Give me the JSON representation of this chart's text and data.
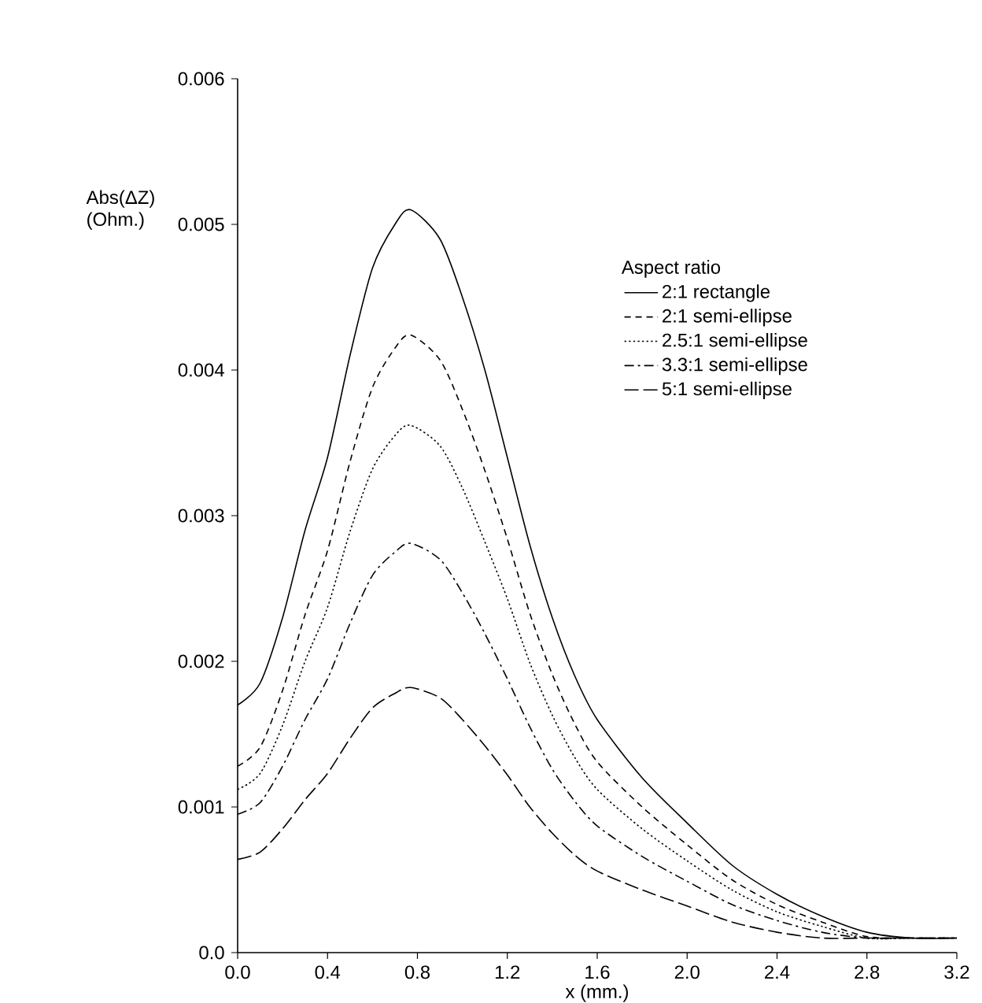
{
  "chart_data": {
    "type": "line",
    "xlabel": "x (mm.)",
    "ylabel": "Abs(ΔZ) (Ohm.)",
    "legend_title": "Aspect ratio",
    "legend": "top right",
    "grid": false,
    "marker": "none",
    "x": [
      0,
      0.1,
      0.2,
      0.3,
      0.4,
      0.5,
      0.6,
      0.7,
      0.77,
      0.9,
      1.0,
      1.1,
      1.2,
      1.3,
      1.4,
      1.5,
      1.6,
      1.8,
      2.0,
      2.2,
      2.4,
      2.6,
      2.8,
      3.0,
      3.2
    ],
    "xlim": [
      0,
      3.2
    ],
    "ylim": [
      0,
      0.006
    ],
    "xticks": [
      {
        "value": 0,
        "label": "0.0"
      },
      0.4,
      0.8,
      1.2,
      1.6,
      {
        "value": 2,
        "label": "2.0"
      },
      2.4,
      2.8,
      3.2
    ],
    "yticks": [
      {
        "value": 0,
        "label": "0.0"
      },
      0.001,
      0.002,
      0.003,
      0.004,
      0.005,
      0.006
    ],
    "series": [
      {
        "name": "2:1 rectangle",
        "color": "#000000",
        "line_style": "solid",
        "values": [
          0.0017,
          0.00185,
          0.0023,
          0.0029,
          0.0034,
          0.0041,
          0.0047,
          0.005,
          0.0051,
          0.0049,
          0.0045,
          0.004,
          0.0034,
          0.0028,
          0.0023,
          0.0019,
          0.0016,
          0.0012,
          0.00089,
          0.0006,
          0.0004,
          0.00025,
          0.00014,
          0.0001,
          0.0001
        ]
      },
      {
        "name": "2:1 semi-ellipse",
        "color": "#000000",
        "line_style": "dashed",
        "values": [
          0.00128,
          0.00141,
          0.0018,
          0.00232,
          0.00276,
          0.00337,
          0.00388,
          0.00415,
          0.00424,
          0.00407,
          0.00373,
          0.00331,
          0.00284,
          0.00233,
          0.00191,
          0.00157,
          0.00131,
          0.001,
          0.00074,
          0.0005,
          0.00033,
          0.00021,
          0.00011,
          0.0001,
          0.0001
        ]
      },
      {
        "name": "2.5:1 semi-ellipse",
        "color": "#000000",
        "line_style": "dotted",
        "values": [
          0.00112,
          0.00123,
          0.00156,
          0.002,
          0.00237,
          0.00289,
          0.00332,
          0.00355,
          0.00362,
          0.00348,
          0.00319,
          0.00282,
          0.00243,
          0.00199,
          0.00163,
          0.00134,
          0.00112,
          0.00085,
          0.00063,
          0.00043,
          0.00028,
          0.00018,
          0.0001,
          0.0001,
          0.0001
        ]
      },
      {
        "name": "3.3:1 semi-ellipse",
        "color": "#000000",
        "line_style": "dashdot",
        "values": [
          0.00095,
          0.00103,
          0.00128,
          0.0016,
          0.00188,
          0.00226,
          0.00259,
          0.00275,
          0.00281,
          0.0027,
          0.00247,
          0.00219,
          0.00188,
          0.00155,
          0.00126,
          0.00104,
          0.00087,
          0.00066,
          0.00049,
          0.00033,
          0.00022,
          0.00014,
          0.0001,
          0.0001,
          0.0001
        ]
      },
      {
        "name": "5:1 semi-ellipse",
        "color": "#000000",
        "line_style": "long dashed",
        "values": [
          0.00064,
          0.00069,
          0.00085,
          0.00105,
          0.00123,
          0.00147,
          0.00168,
          0.00178,
          0.00182,
          0.00175,
          0.0016,
          0.00142,
          0.00122,
          0.001,
          0.00082,
          0.00067,
          0.00056,
          0.00043,
          0.00032,
          0.00021,
          0.00014,
          0.0001,
          0.0001,
          0.0001,
          0.0001
        ]
      }
    ]
  }
}
